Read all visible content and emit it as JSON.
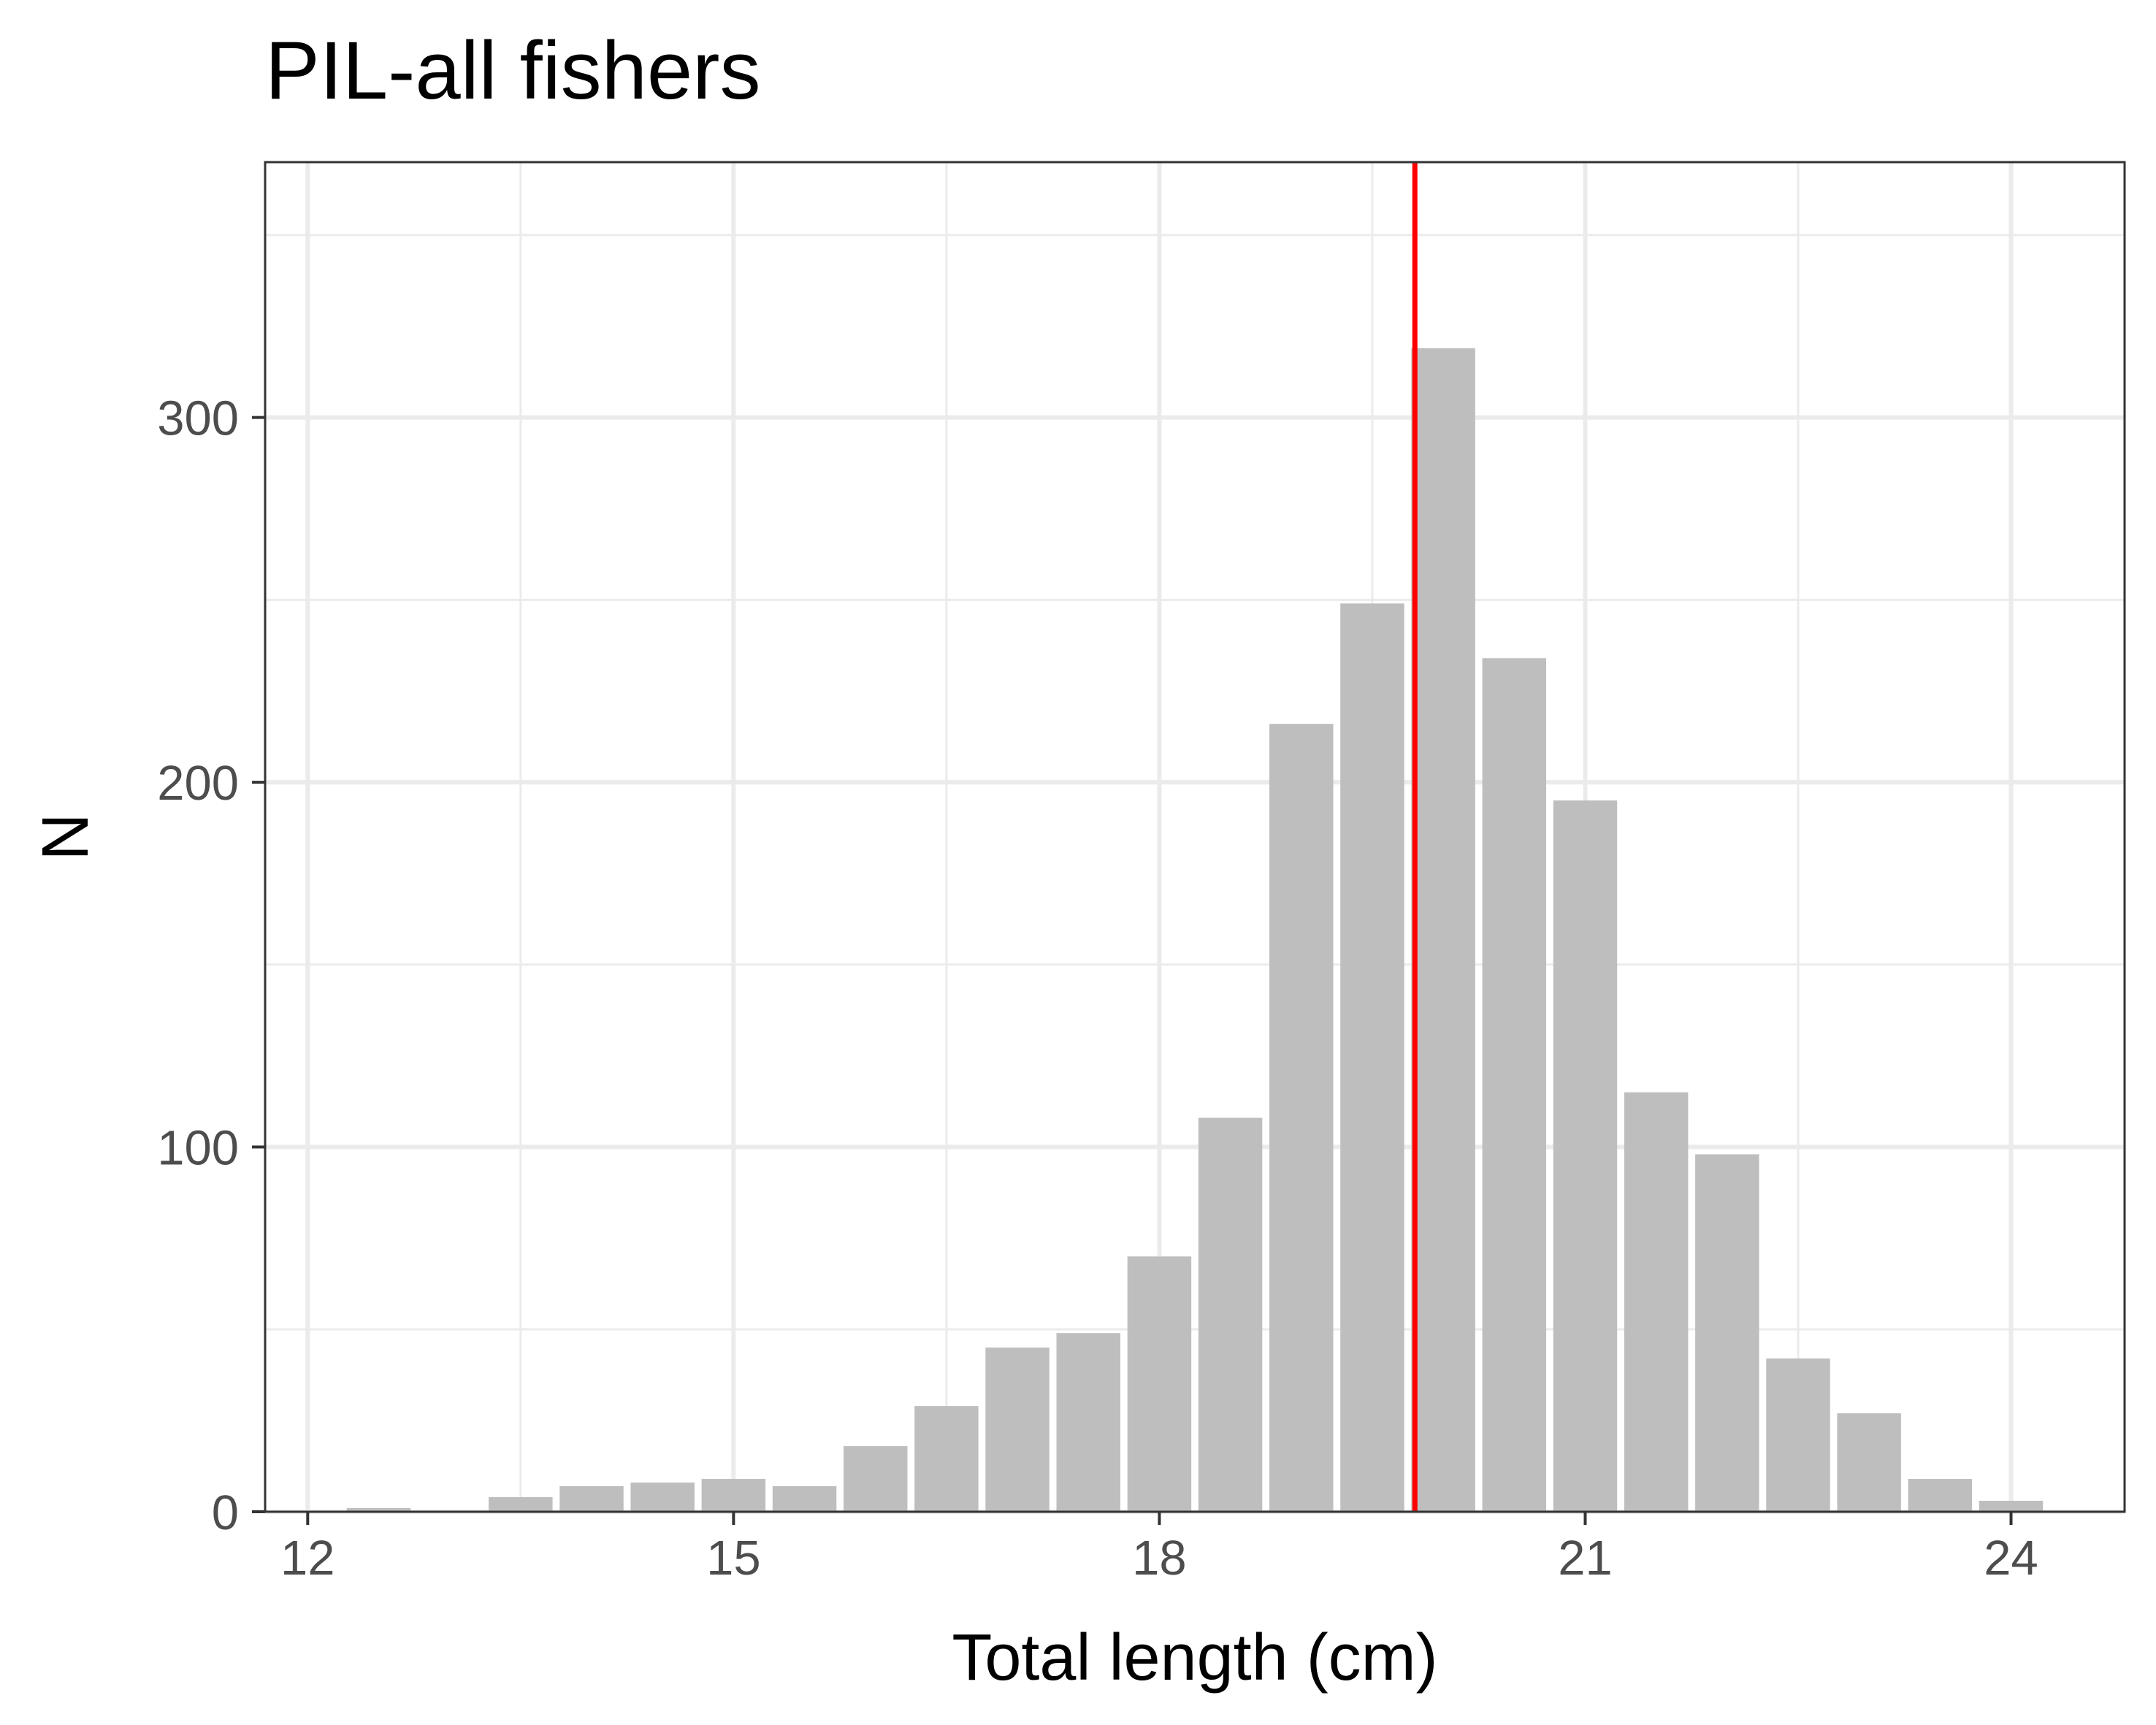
{
  "chart_data": {
    "type": "bar",
    "title": "PIL-all fishers",
    "xlabel": "Total length (cm)",
    "ylabel": "N",
    "x": [
      12.5,
      13.0,
      13.5,
      14.0,
      14.5,
      15.0,
      15.5,
      16.0,
      16.5,
      17.0,
      17.5,
      18.0,
      18.5,
      19.0,
      19.5,
      20.0,
      20.5,
      21.0,
      21.5,
      22.0,
      22.5,
      23.0,
      23.5,
      24.0
    ],
    "values": [
      1,
      0,
      4,
      7,
      8,
      9,
      7,
      18,
      29,
      45,
      49,
      70,
      108,
      216,
      249,
      319,
      234,
      195,
      115,
      98,
      42,
      27,
      9,
      3
    ],
    "xlim": [
      11.7,
      24.8
    ],
    "ylim": [
      0,
      370
    ],
    "x_ticks": [
      "12",
      "15",
      "18",
      "21",
      "24"
    ],
    "x_tick_values": [
      12,
      15,
      18,
      21,
      24
    ],
    "y_ticks": [
      "0",
      "100",
      "200",
      "300"
    ],
    "y_tick_values": [
      0,
      100,
      200,
      300
    ],
    "x_minor_grid": [
      13.5,
      16.5,
      19.5,
      22.5
    ],
    "y_minor_grid": [
      50,
      150,
      250,
      350
    ],
    "reference_line": {
      "orientation": "vertical",
      "x": 19.8,
      "color": "#ff0000"
    },
    "bar_color": "#bebebe",
    "bar_width": 0.45,
    "grid": true,
    "legend": "none"
  }
}
